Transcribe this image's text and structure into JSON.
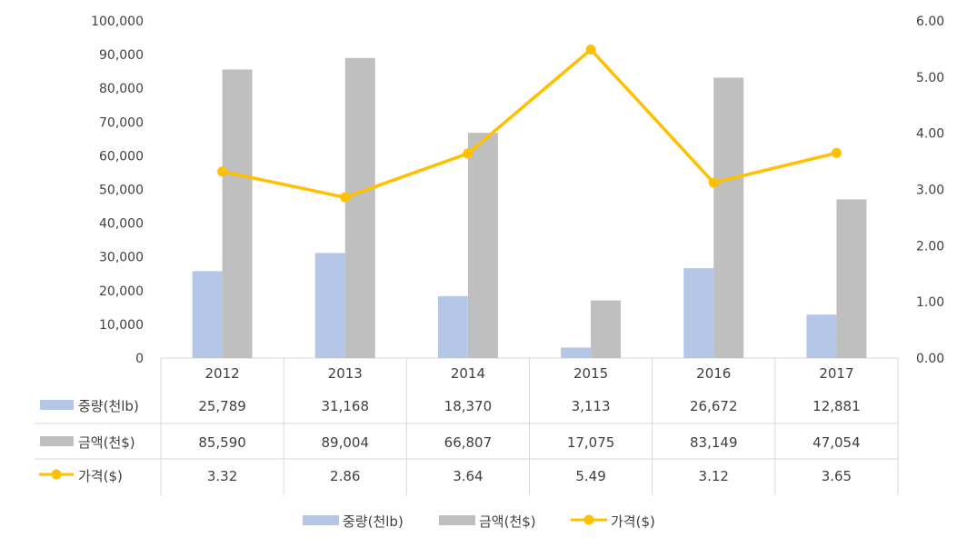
{
  "chart_data": {
    "type": "bar",
    "categories": [
      "2012",
      "2013",
      "2014",
      "2015",
      "2016",
      "2017"
    ],
    "series": [
      {
        "name": "중량(천lb)",
        "type": "bar",
        "axis": "left",
        "color": "#B4C7E7",
        "values": [
          25789,
          31168,
          18370,
          3113,
          26672,
          12881
        ],
        "labels": [
          "25,789",
          "31,168",
          "18,370",
          "3,113",
          "26,672",
          "12,881"
        ]
      },
      {
        "name": "금액(천$)",
        "type": "bar",
        "axis": "left",
        "color": "#BFBFBF",
        "values": [
          85590,
          89004,
          66807,
          17075,
          83149,
          47054
        ],
        "labels": [
          "85,590",
          "89,004",
          "66,807",
          "17,075",
          "83,149",
          "47,054"
        ]
      },
      {
        "name": "가격($)",
        "type": "line",
        "axis": "right",
        "color": "#FFC000",
        "values": [
          3.32,
          2.86,
          3.64,
          5.49,
          3.12,
          3.65
        ],
        "labels": [
          "3.32",
          "2.86",
          "3.64",
          "5.49",
          "3.12",
          "3.65"
        ]
      }
    ],
    "y_left": {
      "ylim": [
        0,
        100000
      ],
      "ticks": [
        "0",
        "10,000",
        "20,000",
        "30,000",
        "40,000",
        "50,000",
        "60,000",
        "70,000",
        "80,000",
        "90,000",
        "100,000"
      ]
    },
    "y_right": {
      "ylim": [
        0,
        6
      ],
      "ticks": [
        "0.00",
        "1.00",
        "2.00",
        "3.00",
        "4.00",
        "5.00",
        "6.00"
      ]
    },
    "grid": false,
    "data_table": true,
    "legend_position": "bottom"
  }
}
